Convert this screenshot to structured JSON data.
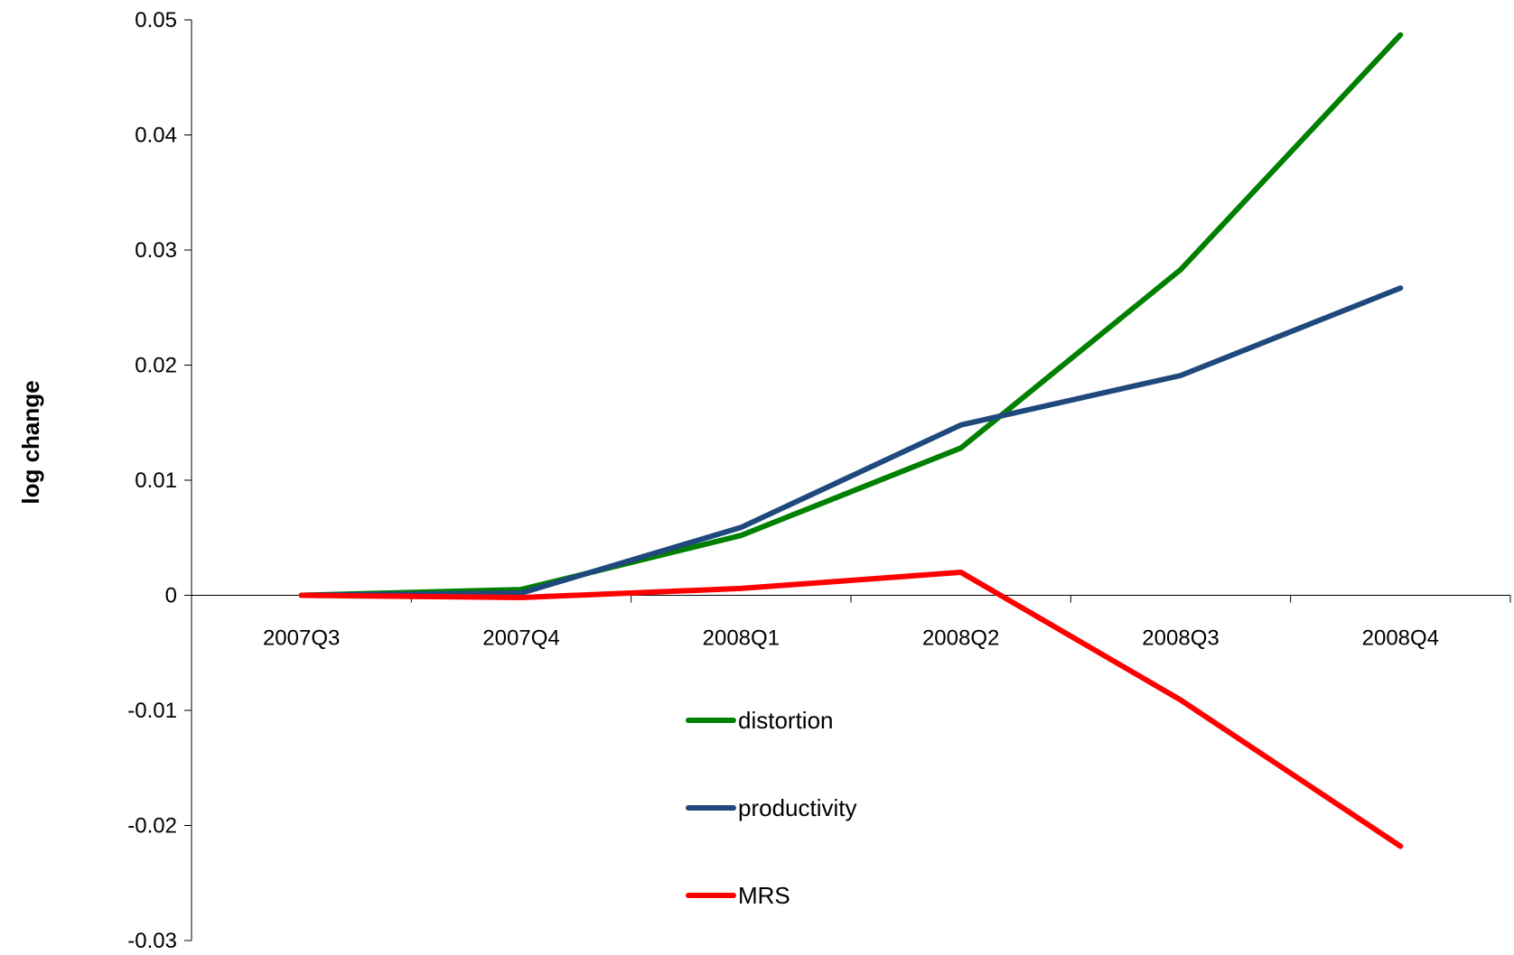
{
  "chart_data": {
    "type": "line",
    "title": "",
    "xlabel": "",
    "ylabel": "log change",
    "categories": [
      "2007Q3",
      "2007Q4",
      "2008Q1",
      "2008Q2",
      "2008Q3",
      "2008Q4"
    ],
    "ylim": [
      -0.03,
      0.05
    ],
    "yticks": [
      0.05,
      0.04,
      0.03,
      0.02,
      0.01,
      0,
      -0.01,
      -0.02,
      -0.03
    ],
    "ytick_labels": [
      "0.05",
      "0.04",
      "0.03",
      "0.02",
      "0.01",
      "0",
      "-0.01",
      "-0.02",
      "-0.03"
    ],
    "grid": false,
    "legend_position": "center-bottom",
    "series": [
      {
        "name": "distortion",
        "color": "#008000",
        "values": [
          0,
          0.0005,
          0.0052,
          0.0128,
          0.0283,
          0.0487
        ]
      },
      {
        "name": "productivity",
        "color": "#1F497D",
        "values": [
          0,
          0.0002,
          0.0059,
          0.0148,
          0.0191,
          0.0267
        ]
      },
      {
        "name": "MRS",
        "color": "#FF0000",
        "values": [
          0,
          -0.0002,
          0.0006,
          0.002,
          -0.0091,
          -0.0218
        ]
      }
    ]
  }
}
